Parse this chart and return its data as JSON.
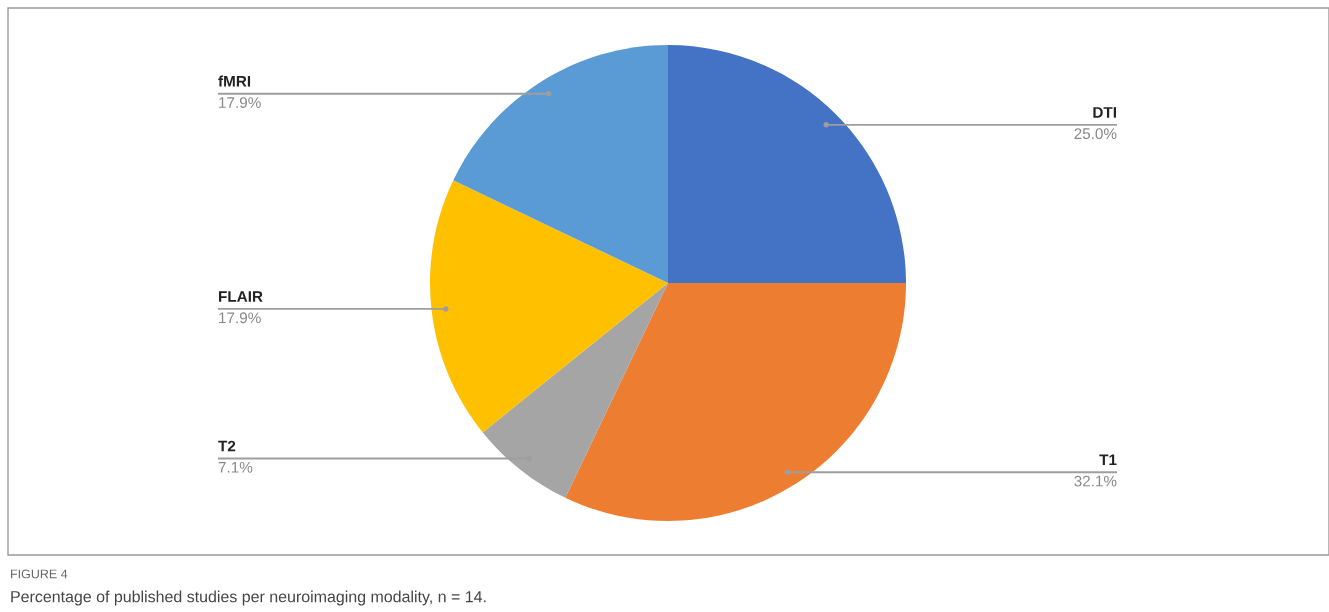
{
  "chart_data": {
    "type": "pie",
    "categories": [
      "DTI",
      "T1",
      "T2",
      "FLAIR",
      "fMRI"
    ],
    "values": [
      25.0,
      32.1,
      7.1,
      17.9,
      17.9
    ],
    "value_labels": [
      "25.0%",
      "32.1%",
      "7.1%",
      "17.9%",
      "17.9%"
    ],
    "colors": [
      "#4472c4",
      "#ed7d31",
      "#a5a5a5",
      "#ffc000",
      "#5b9bd5"
    ],
    "annotations": [
      "FIGURE 4",
      "Percentage of published studies per neuroimaging modality, n = 14."
    ]
  }
}
